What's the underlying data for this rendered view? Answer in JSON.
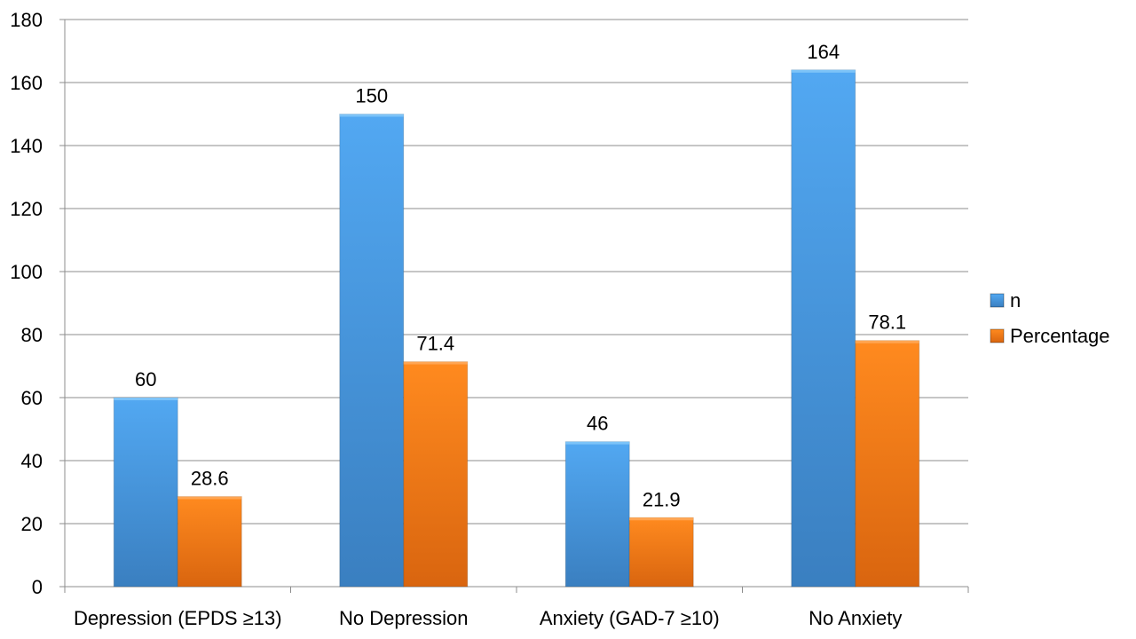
{
  "chart_data": {
    "type": "bar",
    "categories": [
      "Depression (EPDS ≥13)",
      "No Depression",
      "Anxiety (GAD-7 ≥10)",
      "No Anxiety"
    ],
    "series": [
      {
        "name": "n",
        "values": [
          60,
          150,
          46,
          164
        ],
        "color": "#4a9be6"
      },
      {
        "name": "Percentage",
        "values": [
          28.6,
          71.4,
          21.9,
          78.1
        ],
        "color": "#f57f17"
      }
    ],
    "ylim": [
      0,
      180
    ],
    "yticks": [
      0,
      20,
      40,
      60,
      80,
      100,
      120,
      140,
      160,
      180
    ],
    "grid": true,
    "legend": "right",
    "data_labels": true
  }
}
